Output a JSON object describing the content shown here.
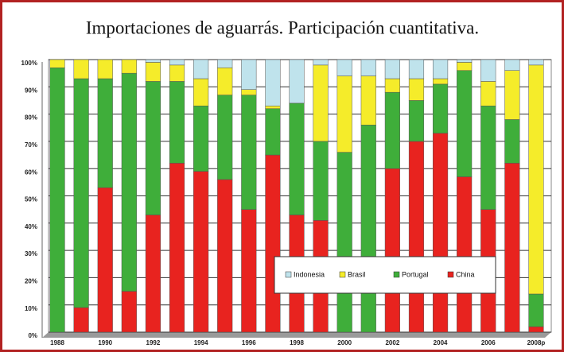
{
  "chart_data": {
    "type": "stacked_bar",
    "title": "Importaciones de aguarrás. Participación cuantitativa.",
    "categories": [
      "1988",
      null,
      "1990",
      null,
      "1992",
      null,
      "1994",
      null,
      "1996",
      null,
      "1998",
      null,
      "2000",
      null,
      "2002",
      null,
      "2004",
      null,
      "2006",
      null,
      "2008p"
    ],
    "series": [
      {
        "name": "China",
        "color": "#e8231f",
        "values": [
          0,
          9,
          53,
          15,
          43,
          62,
          59,
          56,
          45,
          65,
          43,
          41,
          0,
          0,
          60,
          70,
          73,
          57,
          45,
          62,
          2
        ]
      },
      {
        "name": "Portugal",
        "color": "#3fae3a",
        "values": [
          97,
          84,
          40,
          80,
          49,
          30,
          24,
          31,
          42,
          17,
          41,
          29,
          66,
          76,
          28,
          15,
          18,
          39,
          38,
          16,
          12
        ]
      },
      {
        "name": "Brasil",
        "color": "#f5ec2a",
        "values": [
          3,
          7,
          7,
          5,
          7,
          6,
          10,
          10,
          2,
          1,
          0,
          28,
          28,
          18,
          5,
          8,
          2,
          3,
          9,
          18,
          84
        ]
      },
      {
        "name": "Indonesia",
        "color": "#bfe3ec",
        "values": [
          0,
          0,
          0,
          0,
          1,
          2,
          7,
          3,
          11,
          17,
          16,
          2,
          6,
          6,
          7,
          7,
          7,
          1,
          8,
          4,
          2
        ]
      }
    ],
    "ylim": [
      0,
      100
    ],
    "yticks": [
      {
        "value": 0,
        "label": "0%"
      },
      {
        "value": 10,
        "label": "10%"
      },
      {
        "value": 20,
        "label": "20%"
      },
      {
        "value": 30,
        "label": "30%"
      },
      {
        "value": 40,
        "label": "40%"
      },
      {
        "value": 50,
        "label": "50%"
      },
      {
        "value": 60,
        "label": "60%"
      },
      {
        "value": 70,
        "label": "70%"
      },
      {
        "value": 80,
        "label": "80%"
      },
      {
        "value": 90,
        "label": "90%"
      },
      {
        "value": 100,
        "label": "100%"
      }
    ],
    "grid": true
  }
}
